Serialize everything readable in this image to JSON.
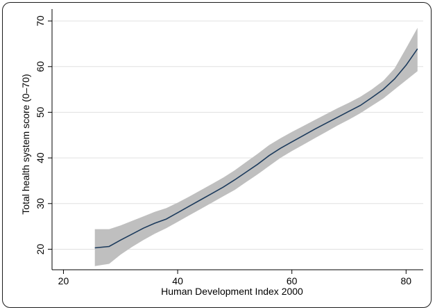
{
  "chart_data": {
    "type": "line",
    "title": "",
    "xlabel": "Human Development Index 2000",
    "ylabel": "Total health system score (0–70)",
    "xlim": [
      18,
      83
    ],
    "ylim": [
      15.5,
      72
    ],
    "xticks": [
      20,
      40,
      60,
      80
    ],
    "yticks": [
      20,
      30,
      40,
      50,
      60,
      70
    ],
    "grid": true,
    "legend": "none",
    "series": [
      {
        "style": "fitted line with shaded confidence band",
        "x": [
          25.5,
          28,
          30,
          32,
          34,
          36,
          38,
          40,
          42,
          44,
          46,
          48,
          50,
          52,
          54,
          56,
          58,
          60,
          62,
          64,
          66,
          68,
          70,
          72,
          74,
          76,
          78,
          80,
          82
        ],
        "y": [
          20.3,
          20.6,
          22.0,
          23.3,
          24.6,
          25.7,
          26.6,
          28.0,
          29.4,
          30.8,
          32.2,
          33.6,
          35.2,
          36.9,
          38.6,
          40.5,
          42.1,
          43.5,
          44.9,
          46.3,
          47.6,
          48.9,
          50.2,
          51.5,
          53.2,
          55.0,
          57.3,
          60.3,
          63.9
        ],
        "lower": [
          16.3,
          16.8,
          18.8,
          20.5,
          22.0,
          23.4,
          24.6,
          26.0,
          27.4,
          28.8,
          30.2,
          31.6,
          33.0,
          34.7,
          36.4,
          38.2,
          40.0,
          41.5,
          42.9,
          44.3,
          45.7,
          47.1,
          48.4,
          49.8,
          51.4,
          53.0,
          55.0,
          57.0,
          59.0
        ],
        "upper": [
          24.4,
          24.4,
          25.2,
          26.2,
          27.2,
          28.2,
          29.0,
          30.2,
          31.5,
          32.9,
          34.3,
          35.7,
          37.3,
          39.1,
          40.9,
          42.8,
          44.3,
          45.7,
          47.0,
          48.3,
          49.6,
          50.9,
          52.1,
          53.4,
          55.0,
          56.9,
          59.6,
          64.0,
          68.5
        ]
      }
    ],
    "colors": {
      "band": "#bfbfbf",
      "line": "#1b3a5c",
      "grid": "#e0e0e0",
      "axis": "#000000"
    }
  }
}
